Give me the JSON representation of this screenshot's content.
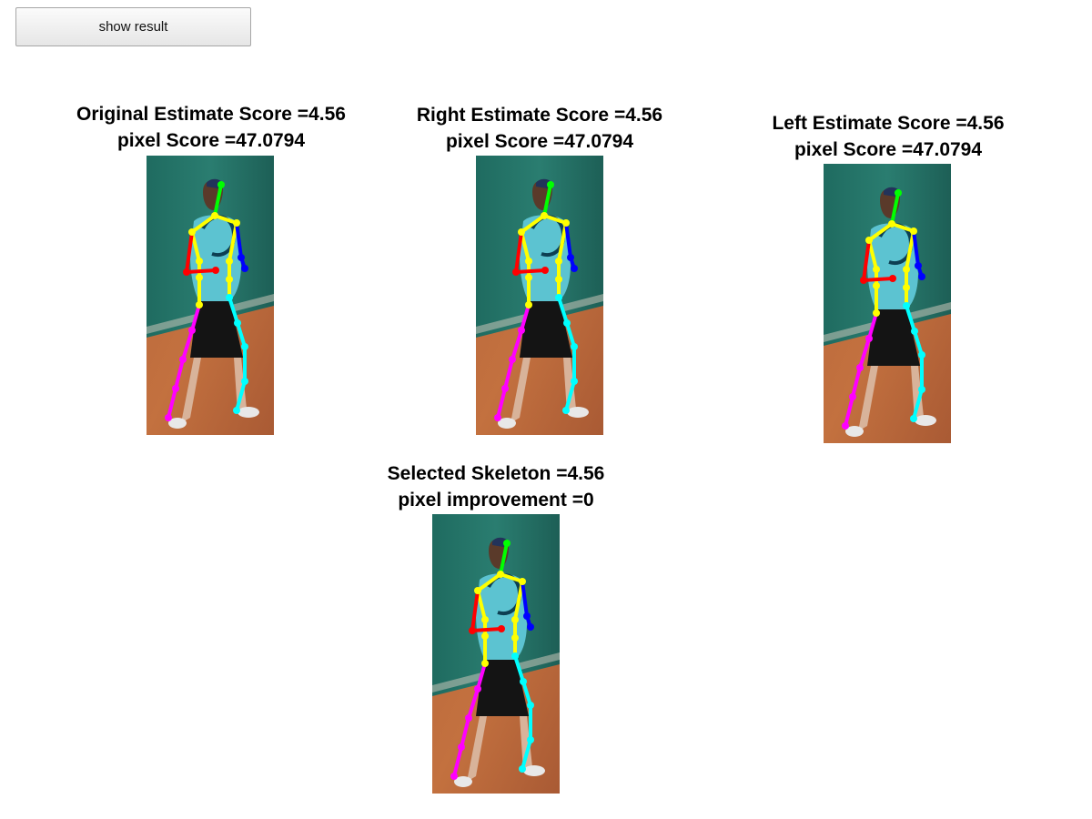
{
  "button": {
    "label": "show result"
  },
  "panels": [
    {
      "line1": "Original Estimate Score =4.56",
      "line2": "pixel Score =47.0794"
    },
    {
      "line1": "Right Estimate Score =4.56",
      "line2": "pixel Score =47.0794"
    },
    {
      "line1": "Left Estimate Score =4.56",
      "line2": "pixel Score =47.0794"
    },
    {
      "line1": "Selected Skeleton =4.56",
      "line2": "pixel improvement =0"
    }
  ],
  "skeleton_colors": {
    "head": "#00ff00",
    "torso": "#ffff00",
    "right_arm": "#ff0000",
    "left_arm": "#0000ff",
    "right_leg": "#ff00ff",
    "left_leg": "#00ffff"
  }
}
